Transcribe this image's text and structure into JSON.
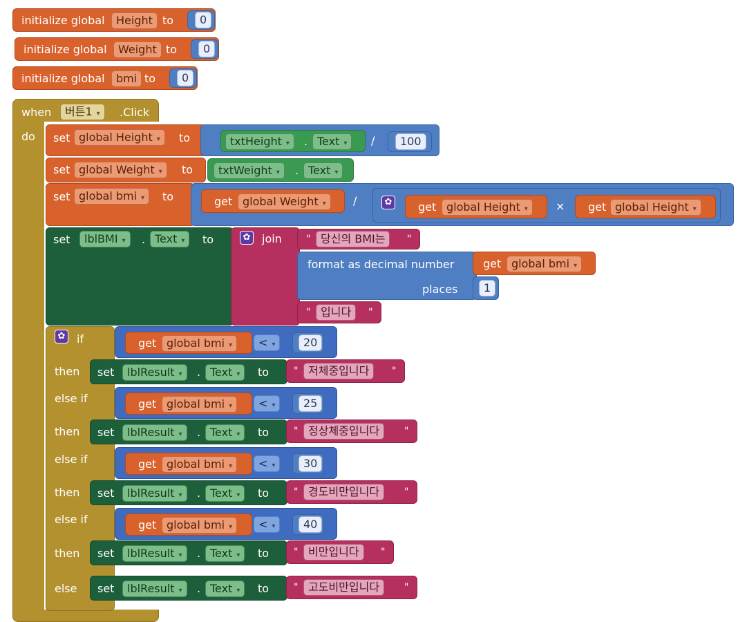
{
  "keywords": {
    "initialize_global": "initialize global",
    "to": "to",
    "when": "when",
    "click": ".Click",
    "do": "do",
    "set": "set",
    "get": "get",
    "dot": ".",
    "divide": "/",
    "multiply": "×",
    "join": "join",
    "format": "format as decimal number",
    "places": "places",
    "if": "if",
    "then": "then",
    "else_if": "else if",
    "else": "else",
    "quote": "\""
  },
  "globals": [
    {
      "name": "Height",
      "value": "0"
    },
    {
      "name": "Weight",
      "value": "0"
    },
    {
      "name": "bmi",
      "value": "0"
    }
  ],
  "event": {
    "component": "버튼1"
  },
  "vars": {
    "height": "global Height",
    "weight": "global Weight",
    "bmi": "global bmi"
  },
  "components": {
    "txtHeight": "txtHeight",
    "txtWeight": "txtWeight",
    "lblBMI": "lblBMI",
    "lblResult": "lblResult",
    "text_prop": "Text"
  },
  "numbers": {
    "hundred": "100",
    "places": "1"
  },
  "strings": {
    "bmi_prefix": "당신의 BMI는",
    "bmi_suffix": "입니다"
  },
  "conditions": [
    {
      "keyword": "if",
      "op": "<",
      "threshold": "20",
      "result": "저체중입니다"
    },
    {
      "keyword": "else if",
      "op": "<",
      "threshold": "25",
      "result": "정상체중입니다"
    },
    {
      "keyword": "else if",
      "op": "<",
      "threshold": "30",
      "result": "경도비만입니다"
    },
    {
      "keyword": "else if",
      "op": "<",
      "threshold": "40",
      "result": "비만입니다"
    }
  ],
  "else_result": "고도비만입니다",
  "dropdown_arrow": "▾",
  "colors": {
    "variable": "#d9612c",
    "math": "#4f7ec2",
    "text": "#b5305e",
    "control": "#b3912e",
    "component": "#3b9a52",
    "component_setter": "#1e5f3b"
  }
}
